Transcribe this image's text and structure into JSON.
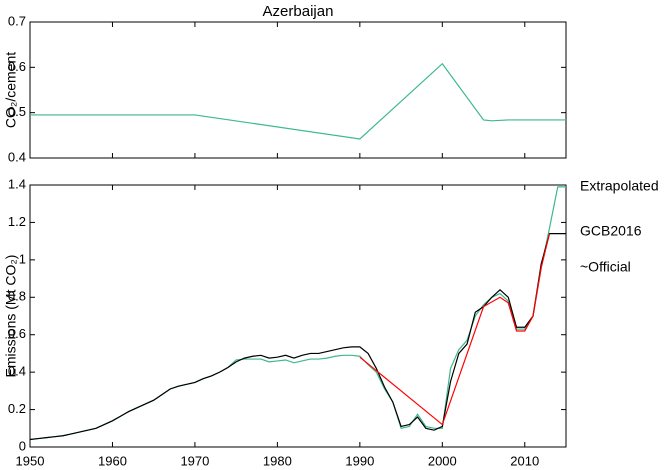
{
  "chart_data": [
    {
      "type": "line",
      "title": "Azerbaijan",
      "ylabel": "CO₂/cement",
      "xlim": [
        1950,
        2015
      ],
      "xticks": [
        1950,
        1960,
        1970,
        1980,
        1990,
        2000,
        2010
      ],
      "ylim": [
        0.4,
        0.7
      ],
      "yticks": [
        0.4,
        0.5,
        0.6,
        0.7
      ],
      "series": [
        {
          "color": "#3cb88f",
          "x": [
            1950,
            1970,
            1990,
            2000,
            2005,
            2006,
            2008,
            2015
          ],
          "values": [
            0.495,
            0.495,
            0.442,
            0.608,
            0.484,
            0.482,
            0.484,
            0.484
          ]
        }
      ]
    },
    {
      "type": "line",
      "ylabel": "Emissions (Mt CO₂)",
      "xlim": [
        1950,
        2015
      ],
      "xticks": [
        1950,
        1960,
        1970,
        1980,
        1990,
        2000,
        2010
      ],
      "ylim": [
        0,
        1.4
      ],
      "yticks": [
        0,
        0.2,
        0.4,
        0.6,
        0.8,
        1,
        1.2,
        1.4
      ],
      "series": [
        {
          "name": "Extrapolated",
          "color": "#3cb88f",
          "x": [
            1950,
            1951,
            1952,
            1953,
            1954,
            1955,
            1956,
            1957,
            1958,
            1959,
            1960,
            1961,
            1962,
            1963,
            1964,
            1965,
            1966,
            1967,
            1968,
            1969,
            1970,
            1971,
            1972,
            1973,
            1974,
            1975,
            1976,
            1977,
            1978,
            1979,
            1980,
            1981,
            1982,
            1983,
            1984,
            1985,
            1986,
            1987,
            1988,
            1989,
            1990,
            1991,
            1992,
            1993,
            1994,
            1995,
            1996,
            1997,
            1998,
            1999,
            2000,
            2001,
            2002,
            2003,
            2004,
            2005,
            2006,
            2007,
            2008,
            2009,
            2010,
            2011,
            2012,
            2013,
            2014,
            2015
          ],
          "values": [
            0.04,
            0.045,
            0.05,
            0.055,
            0.06,
            0.07,
            0.08,
            0.09,
            0.1,
            0.12,
            0.14,
            0.165,
            0.19,
            0.21,
            0.23,
            0.25,
            0.28,
            0.31,
            0.325,
            0.335,
            0.345,
            0.365,
            0.38,
            0.4,
            0.425,
            0.465,
            0.47,
            0.47,
            0.47,
            0.455,
            0.46,
            0.465,
            0.45,
            0.46,
            0.47,
            0.47,
            0.475,
            0.485,
            0.49,
            0.49,
            0.485,
            0.44,
            0.4,
            0.31,
            0.24,
            0.1,
            0.11,
            0.175,
            0.11,
            0.1,
            0.1,
            0.42,
            0.52,
            0.57,
            0.7,
            0.76,
            0.8,
            0.82,
            0.78,
            0.63,
            0.63,
            0.7,
            0.96,
            1.17,
            1.39,
            1.39
          ]
        },
        {
          "name": "GCB2016",
          "color": "#000000",
          "x": [
            1950,
            1951,
            1952,
            1953,
            1954,
            1955,
            1956,
            1957,
            1958,
            1959,
            1960,
            1961,
            1962,
            1963,
            1964,
            1965,
            1966,
            1967,
            1968,
            1969,
            1970,
            1971,
            1972,
            1973,
            1974,
            1975,
            1976,
            1977,
            1978,
            1979,
            1980,
            1981,
            1982,
            1983,
            1984,
            1985,
            1986,
            1987,
            1988,
            1989,
            1990,
            1991,
            1992,
            1993,
            1994,
            1995,
            1996,
            1997,
            1998,
            1999,
            2000,
            2001,
            2002,
            2003,
            2004,
            2005,
            2006,
            2007,
            2008,
            2009,
            2010,
            2011,
            2012,
            2013,
            2014,
            2015
          ],
          "values": [
            0.04,
            0.045,
            0.05,
            0.055,
            0.06,
            0.07,
            0.08,
            0.09,
            0.1,
            0.12,
            0.14,
            0.165,
            0.19,
            0.21,
            0.23,
            0.25,
            0.28,
            0.31,
            0.325,
            0.335,
            0.345,
            0.365,
            0.38,
            0.4,
            0.425,
            0.455,
            0.475,
            0.485,
            0.49,
            0.475,
            0.48,
            0.49,
            0.475,
            0.49,
            0.5,
            0.5,
            0.51,
            0.52,
            0.53,
            0.535,
            0.535,
            0.5,
            0.42,
            0.32,
            0.24,
            0.11,
            0.12,
            0.16,
            0.1,
            0.09,
            0.11,
            0.35,
            0.5,
            0.55,
            0.72,
            0.75,
            0.8,
            0.84,
            0.8,
            0.64,
            0.64,
            0.7,
            0.98,
            1.14,
            1.14,
            1.14
          ]
        },
        {
          "name": "~Official",
          "color": "#ff0000",
          "x": [
            1990,
            2000,
            2005,
            2007,
            2008,
            2009,
            2010,
            2011,
            2012,
            2013
          ],
          "values": [
            0.48,
            0.12,
            0.75,
            0.8,
            0.77,
            0.62,
            0.62,
            0.7,
            0.96,
            1.14
          ]
        }
      ]
    }
  ]
}
